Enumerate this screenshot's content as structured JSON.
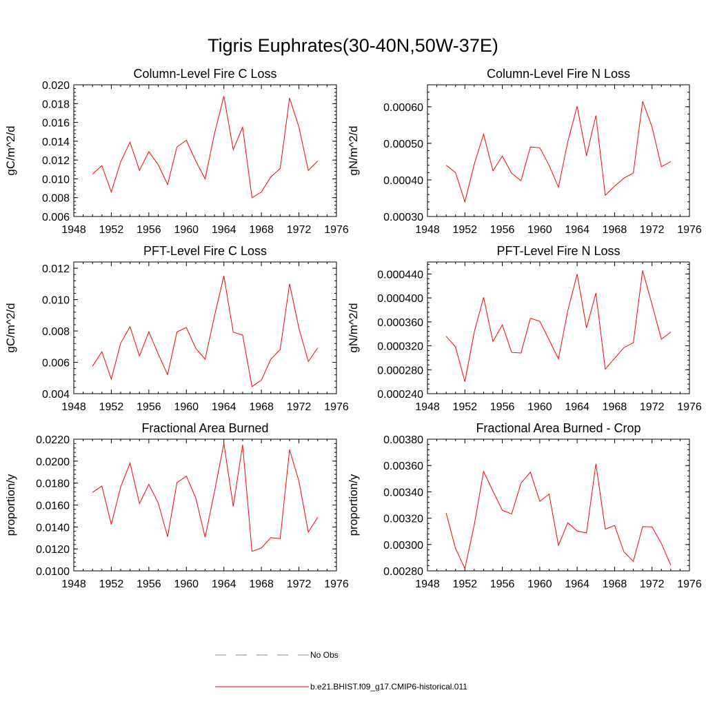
{
  "title": "Tigris Euphrates(30-40N,50W-37E)",
  "legend": [
    {
      "label": "No Obs",
      "color": "#7f7fbf",
      "style": "dashed"
    },
    {
      "label": "b.e21.BHIST.f09_g17.CMIP6-historical.011",
      "color": "#ff0000",
      "style": "solid"
    }
  ],
  "chart_data": [
    {
      "type": "line",
      "title": "Column-Level Fire C Loss",
      "ylabel": "gC/m^2/d",
      "xlim": [
        1948,
        1976
      ],
      "ylim": [
        0.006,
        0.02
      ],
      "xticks": [
        "1948",
        "1952",
        "1956",
        "1960",
        "1964",
        "1968",
        "1972",
        "1976"
      ],
      "yticks": [
        "0.006",
        "0.008",
        "0.010",
        "0.012",
        "0.014",
        "0.016",
        "0.018",
        "0.020"
      ],
      "x": [
        1950,
        1951,
        1952,
        1953,
        1954,
        1955,
        1956,
        1957,
        1958,
        1959,
        1960,
        1961,
        1962,
        1963,
        1964,
        1965,
        1966,
        1967,
        1968,
        1969,
        1970,
        1971,
        1972,
        1973,
        1974
      ],
      "series": [
        {
          "name": "b.e21.BHIST.f09_g17.CMIP6-historical.011",
          "color": "#ff0000",
          "values": [
            0.0105,
            0.0114,
            0.0086,
            0.0118,
            0.0139,
            0.0109,
            0.0129,
            0.0115,
            0.0094,
            0.0134,
            0.0141,
            0.0119,
            0.01,
            0.0148,
            0.0188,
            0.0131,
            0.0155,
            0.008,
            0.0086,
            0.0102,
            0.0111,
            0.0186,
            0.0155,
            0.0109,
            0.0119
          ]
        }
      ]
    },
    {
      "type": "line",
      "title": "Column-Level Fire N Loss",
      "ylabel": "gN/m^2/d",
      "xlim": [
        1948,
        1976
      ],
      "ylim": [
        0.0003,
        0.00066
      ],
      "xticks": [
        "1948",
        "1952",
        "1956",
        "1960",
        "1964",
        "1968",
        "1972",
        "1976"
      ],
      "yticks": [
        "0.00030",
        "0.00040",
        "0.00050",
        "0.00060"
      ],
      "x": [
        1950,
        1951,
        1952,
        1953,
        1954,
        1955,
        1956,
        1957,
        1958,
        1959,
        1960,
        1961,
        1962,
        1963,
        1964,
        1965,
        1966,
        1967,
        1968,
        1969,
        1970,
        1971,
        1972,
        1973,
        1974
      ],
      "series": [
        {
          "name": "b.e21.BHIST.f09_g17.CMIP6-historical.011",
          "color": "#ff0000",
          "values": [
            0.00044,
            0.00042,
            0.00034,
            0.000443,
            0.000525,
            0.000425,
            0.000465,
            0.000418,
            0.000398,
            0.00049,
            0.000488,
            0.00044,
            0.00038,
            0.000505,
            0.000601,
            0.000466,
            0.000576,
            0.000358,
            0.000383,
            0.000405,
            0.000419,
            0.000615,
            0.000545,
            0.000436,
            0.00045
          ]
        }
      ]
    },
    {
      "type": "line",
      "title": "PFT-Level Fire C Loss",
      "ylabel": "gC/m^2/d",
      "xlim": [
        1948,
        1976
      ],
      "ylim": [
        0.004,
        0.0124
      ],
      "xticks": [
        "1948",
        "1952",
        "1956",
        "1960",
        "1964",
        "1968",
        "1972",
        "1976"
      ],
      "yticks": [
        "0.004",
        "0.006",
        "0.008",
        "0.010",
        "0.012"
      ],
      "x": [
        1950,
        1951,
        1952,
        1953,
        1954,
        1955,
        1956,
        1957,
        1958,
        1959,
        1960,
        1961,
        1962,
        1963,
        1964,
        1965,
        1966,
        1967,
        1968,
        1969,
        1970,
        1971,
        1972,
        1973,
        1974
      ],
      "series": [
        {
          "name": "b.e21.BHIST.f09_g17.CMIP6-historical.011",
          "color": "#ff0000",
          "values": [
            0.00575,
            0.00668,
            0.00493,
            0.00722,
            0.00827,
            0.0064,
            0.00795,
            0.00653,
            0.00522,
            0.00794,
            0.00822,
            0.0069,
            0.0062,
            0.00895,
            0.01151,
            0.00792,
            0.00774,
            0.00445,
            0.00486,
            0.0062,
            0.00682,
            0.01101,
            0.00817,
            0.00605,
            0.00692
          ]
        }
      ]
    },
    {
      "type": "line",
      "title": "PFT-Level Fire N Loss",
      "ylabel": "gN/m^2/d",
      "xlim": [
        1948,
        1976
      ],
      "ylim": [
        0.00024,
        0.00046
      ],
      "xticks": [
        "1948",
        "1952",
        "1956",
        "1960",
        "1964",
        "1968",
        "1972",
        "1976"
      ],
      "yticks": [
        "0.000240",
        "0.000280",
        "0.000320",
        "0.000360",
        "0.000400",
        "0.000440"
      ],
      "x": [
        1950,
        1951,
        1952,
        1953,
        1954,
        1955,
        1956,
        1957,
        1958,
        1959,
        1960,
        1961,
        1962,
        1963,
        1964,
        1965,
        1966,
        1967,
        1968,
        1969,
        1970,
        1971,
        1972,
        1973,
        1974
      ],
      "series": [
        {
          "name": "b.e21.BHIST.f09_g17.CMIP6-historical.011",
          "color": "#ff0000",
          "values": [
            0.000336,
            0.000318,
            0.00026,
            0.000343,
            0.000401,
            0.000327,
            0.000355,
            0.000309,
            0.000308,
            0.000366,
            0.000361,
            0.00033,
            0.000298,
            0.000379,
            0.00044,
            0.00035,
            0.000408,
            0.000281,
            0.000299,
            0.000317,
            0.000325,
            0.000446,
            0.000389,
            0.000331,
            0.000343
          ]
        }
      ]
    },
    {
      "type": "line",
      "title": "Fractional Area Burned",
      "ylabel": "proportion/y",
      "xlim": [
        1948,
        1976
      ],
      "ylim": [
        0.01,
        0.022
      ],
      "xticks": [
        "1948",
        "1952",
        "1956",
        "1960",
        "1964",
        "1968",
        "1972",
        "1976"
      ],
      "yticks": [
        "0.0100",
        "0.0120",
        "0.0140",
        "0.0160",
        "0.0180",
        "0.0200",
        "0.0220"
      ],
      "x": [
        1950,
        1951,
        1952,
        1953,
        1954,
        1955,
        1956,
        1957,
        1958,
        1959,
        1960,
        1961,
        1962,
        1963,
        1964,
        1965,
        1966,
        1967,
        1968,
        1969,
        1970,
        1971,
        1972,
        1973,
        1974
      ],
      "series": [
        {
          "name": "b.e21.BHIST.f09_g17.CMIP6-historical.011",
          "color": "#ff0000",
          "values": [
            0.01715,
            0.01773,
            0.01422,
            0.01764,
            0.01982,
            0.01614,
            0.01789,
            0.01619,
            0.01311,
            0.01804,
            0.01863,
            0.01665,
            0.01306,
            0.01722,
            0.02162,
            0.01588,
            0.02149,
            0.01178,
            0.01208,
            0.01303,
            0.01294,
            0.02105,
            0.01816,
            0.01353,
            0.01489
          ]
        }
      ]
    },
    {
      "type": "line",
      "title": "Fractional Area Burned - Crop",
      "ylabel": "proportion/y",
      "xlim": [
        1948,
        1976
      ],
      "ylim": [
        0.0028,
        0.0038
      ],
      "xticks": [
        "1948",
        "1952",
        "1956",
        "1960",
        "1964",
        "1968",
        "1972",
        "1976"
      ],
      "yticks": [
        "0.00280",
        "0.00300",
        "0.00320",
        "0.00340",
        "0.00360",
        "0.00380"
      ],
      "x": [
        1950,
        1951,
        1952,
        1953,
        1954,
        1955,
        1956,
        1957,
        1958,
        1959,
        1960,
        1961,
        1962,
        1963,
        1964,
        1965,
        1966,
        1967,
        1968,
        1969,
        1970,
        1971,
        1972,
        1973,
        1974
      ],
      "series": [
        {
          "name": "b.e21.BHIST.f09_g17.CMIP6-historical.011",
          "color": "#ff0000",
          "values": [
            0.00324,
            0.00297,
            0.002818,
            0.00315,
            0.003555,
            0.003405,
            0.00326,
            0.003232,
            0.003467,
            0.00355,
            0.003328,
            0.003383,
            0.002993,
            0.003166,
            0.003102,
            0.003088,
            0.003613,
            0.003117,
            0.003145,
            0.002944,
            0.002872,
            0.003136,
            0.003134,
            0.003008,
            0.002843
          ]
        }
      ]
    }
  ]
}
